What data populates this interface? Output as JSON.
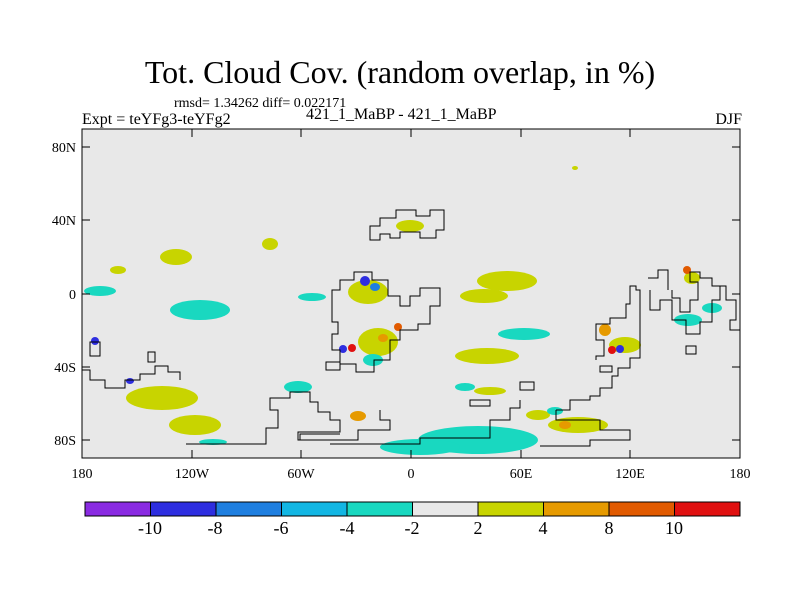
{
  "title": "Tot. Cloud Cov. (random overlap, in %)",
  "stats": "rmsd= 1.34262 diff= 0.022171",
  "experiment": "Expt = teYFg3-teYFg2",
  "runs": "421_1_MaBP - 421_1_MaBP",
  "season": "DJF",
  "y_axis": {
    "ticks": [
      "80N",
      "40N",
      "0",
      "40S",
      "80S"
    ]
  },
  "x_axis": {
    "ticks": [
      "180",
      "120W",
      "60W",
      "0",
      "60E",
      "120E",
      "180"
    ]
  },
  "colorbar": {
    "colors": [
      "#8a2be2",
      "#2e2ee0",
      "#1f7fe0",
      "#12b6e3",
      "#19d8c0",
      "#e8e8e8",
      "#c8d400",
      "#e69a00",
      "#e15a00",
      "#e01010"
    ],
    "labels": [
      "-10",
      "-8",
      "-6",
      "-4",
      "-2",
      "2",
      "4",
      "8",
      "10"
    ]
  },
  "colors": {
    "background": "#e8e8e8",
    "coastline": "#000000"
  }
}
